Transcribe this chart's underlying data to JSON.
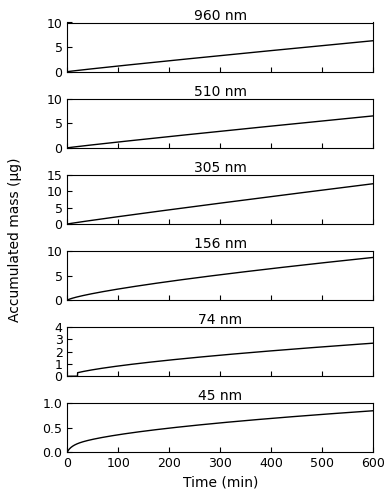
{
  "panels": [
    {
      "title": "960 nm",
      "ylim": [
        0,
        10
      ],
      "yticks": [
        0,
        5,
        10
      ],
      "end_val": 6.3,
      "power": 0.95
    },
    {
      "title": "510 nm",
      "ylim": [
        0,
        10
      ],
      "yticks": [
        0,
        5,
        10
      ],
      "end_val": 6.5,
      "power": 0.95
    },
    {
      "title": "305 nm",
      "ylim": [
        0,
        15
      ],
      "yticks": [
        0,
        5,
        10,
        15
      ],
      "end_val": 12.3,
      "power": 0.95
    },
    {
      "title": "156 nm",
      "ylim": [
        0,
        10
      ],
      "yticks": [
        0,
        5,
        10
      ],
      "end_val": 8.7,
      "power": 0.75
    },
    {
      "title": "74 nm",
      "ylim": [
        0,
        4
      ],
      "yticks": [
        0,
        1,
        2,
        3,
        4
      ],
      "end_val": 2.7,
      "power": 0.65
    },
    {
      "title": "45 nm",
      "ylim": [
        0,
        1.0
      ],
      "yticks": [
        0.0,
        0.5,
        1.0
      ],
      "end_val": 0.85,
      "power": 0.55
    }
  ],
  "xlabel": "Time (min)",
  "ylabel": "Accumulated mass (μg)",
  "xmax": 600,
  "xticks": [
    0,
    100,
    200,
    300,
    400,
    500,
    600
  ],
  "line_color": "black",
  "line_width": 1.0,
  "bg_color": "white",
  "title_fontsize": 10,
  "label_fontsize": 10,
  "tick_fontsize": 9
}
